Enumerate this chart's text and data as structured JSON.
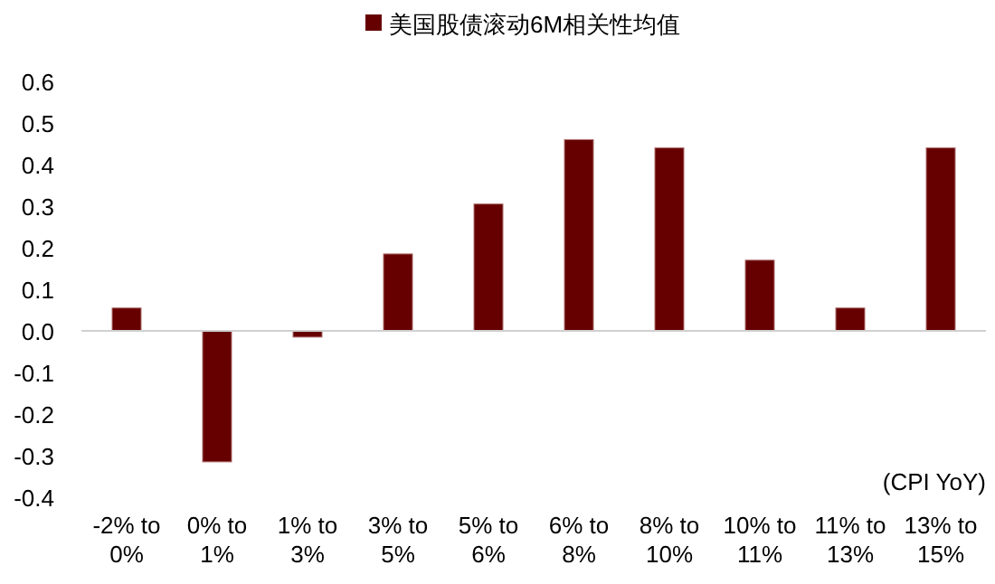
{
  "chart_data": {
    "type": "bar",
    "categories": [
      "-2% to 0%",
      "0% to 1%",
      "1% to 3%",
      "3% to 5%",
      "5% to 6%",
      "6% to 8%",
      "8% to 10%",
      "10% to 11%",
      "11% to 13%",
      "13% to 15%"
    ],
    "series": [
      {
        "name": "美国股债滚动6M相关性均值",
        "color": "#660000",
        "values": [
          0.055,
          -0.315,
          -0.015,
          0.185,
          0.305,
          0.46,
          0.44,
          0.17,
          0.055,
          0.44
        ]
      }
    ],
    "ylim": [
      -0.4,
      0.6
    ],
    "yticks": [
      {
        "value": -0.4,
        "label": "-0.4"
      },
      {
        "value": -0.3,
        "label": "-0.3"
      },
      {
        "value": -0.2,
        "label": "-0.2"
      },
      {
        "value": -0.1,
        "label": "-0.1"
      },
      {
        "value": 0,
        "label": "0.0"
      },
      {
        "value": 0.1,
        "label": "0.1"
      },
      {
        "value": 0.2,
        "label": "0.2"
      },
      {
        "value": 0.3,
        "label": "0.3"
      },
      {
        "value": 0.4,
        "label": "0.4"
      },
      {
        "value": 0.5,
        "label": "0.5"
      },
      {
        "value": 0.6,
        "label": "0.6"
      }
    ],
    "annotations": [
      "(CPI YoY)"
    ],
    "legend": "top"
  }
}
